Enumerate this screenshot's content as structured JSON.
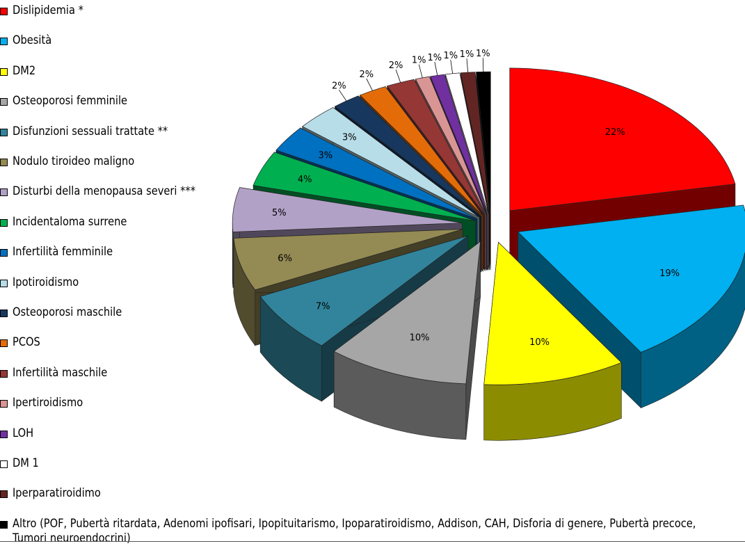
{
  "chart_data": {
    "type": "pie",
    "style": "3d-exploded",
    "legend_position": "left",
    "categories": [
      "Dislipidemia *",
      "Obesità",
      "DM2",
      "Osteoporosi femminile",
      "Disfunzioni sessuali trattate **",
      "Nodulo tiroideo maligno",
      "Disturbi della menopausa severi ***",
      "Incidentaloma surrene",
      "Infertilità femminile",
      "Ipotiroidismo",
      "Osteoporosi maschile",
      "PCOS",
      "Infertilità maschile",
      "Ipertiroidismo",
      "LOH",
      "DM 1",
      "Iperparatiroidimo",
      "Altro (POF, Pubertà ritardata, Adenomi ipofisari, Ipopituitarismo, Ipoparatiroidismo, Addison, CAH, Disforia di genere, Pubertà precoce, Tumori neuroendocrini)"
    ],
    "values": [
      22,
      19,
      10,
      10,
      7,
      6,
      5,
      4,
      3,
      3,
      2,
      2,
      2,
      1,
      1,
      1,
      1,
      1
    ],
    "labels": [
      "22%",
      "19%",
      "10%",
      "10%",
      "7%",
      "6%",
      "5%",
      "4%",
      "3%",
      "3%",
      "2%",
      "2%",
      "2%",
      "1%",
      "1%",
      "1%",
      "1%",
      "1%"
    ],
    "colors": [
      "#ff0000",
      "#00b0f0",
      "#ffff00",
      "#a6a6a6",
      "#31849b",
      "#948a54",
      "#b2a1c7",
      "#00b050",
      "#0070c0",
      "#b7dde8",
      "#17375e",
      "#e36c09",
      "#953735",
      "#d99594",
      "#7030a0",
      "#ffffff",
      "#632523",
      "#000000"
    ]
  }
}
